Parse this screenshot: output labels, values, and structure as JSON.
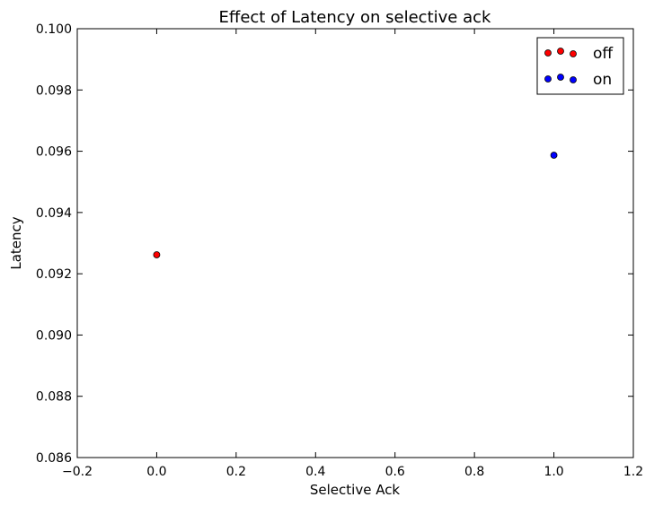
{
  "chart_data": {
    "type": "scatter",
    "title": "Effect of Latency on selective ack",
    "xlabel": "Selective Ack",
    "ylabel": "Latency",
    "xlim": [
      -0.2,
      1.2
    ],
    "ylim": [
      0.086,
      0.1
    ],
    "xticks": [
      -0.2,
      0.0,
      0.2,
      0.4,
      0.6,
      0.8,
      1.0,
      1.2
    ],
    "xtick_labels": [
      "−0.2",
      "0.0",
      "0.2",
      "0.4",
      "0.6",
      "0.8",
      "1.0",
      "1.2"
    ],
    "yticks": [
      0.086,
      0.088,
      0.09,
      0.092,
      0.094,
      0.096,
      0.098,
      0.1
    ],
    "ytick_labels": [
      "0.086",
      "0.088",
      "0.090",
      "0.092",
      "0.094",
      "0.096",
      "0.098",
      "0.100"
    ],
    "grid": false,
    "legend_position": "top-right",
    "series": [
      {
        "name": "off",
        "color": "#ff0000",
        "points": [
          {
            "x": 0.0,
            "y": 0.09262
          }
        ]
      },
      {
        "name": "on",
        "color": "#0000ff",
        "points": [
          {
            "x": 1.0,
            "y": 0.09587
          }
        ]
      }
    ]
  }
}
